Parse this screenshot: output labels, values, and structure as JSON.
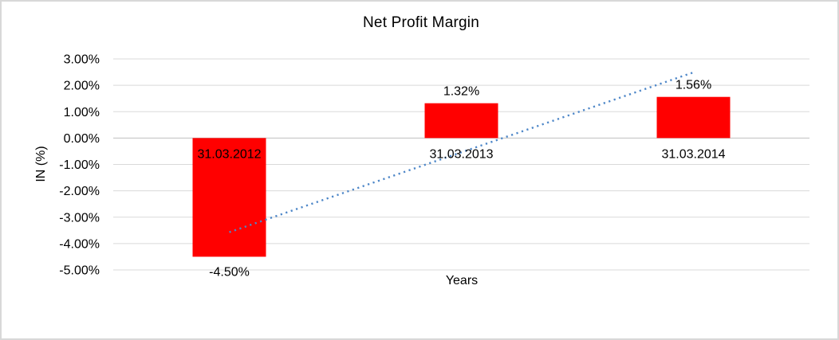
{
  "window": {
    "background": "#ffffff",
    "border_color": "#d8d8d8"
  },
  "chart_data": {
    "type": "bar",
    "title": "Net Profit Margin",
    "xlabel": "Years",
    "ylabel": "IN (%)",
    "categories": [
      "31.03.2012",
      "31.03.2013",
      "31.03.2014"
    ],
    "values": [
      -4.5,
      1.32,
      1.56
    ],
    "data_labels": [
      "-4.50%",
      "1.32%",
      "1.56%"
    ],
    "ylim": [
      -5,
      3
    ],
    "ytick_step": 1,
    "ytick_labels": [
      "3.00%",
      "2.00%",
      "1.00%",
      "0.00%",
      "-1.00%",
      "-2.00%",
      "-3.00%",
      "-4.00%",
      "-5.00%"
    ],
    "grid": true,
    "legend": "none",
    "bar_color": "#ff0000",
    "gridline_color": "#d9d9d9",
    "axis_line_color": "#bfbfbf",
    "text_color": "#000000",
    "trendline": {
      "type": "linear",
      "style": "dotted",
      "color": "#4e87c8",
      "start_value": -3.57,
      "end_value": 2.49
    }
  }
}
